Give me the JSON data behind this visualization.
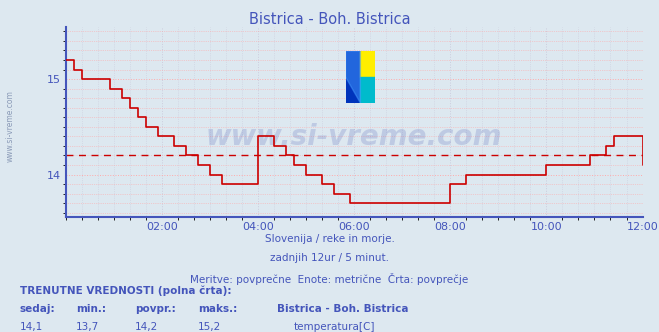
{
  "title": "Bistrica - Boh. Bistrica",
  "title_color": "#4455bb",
  "bg_color": "#dde8f0",
  "plot_bg_color": "#dde8f0",
  "grid_color_h": "#ffaaaa",
  "grid_color_v": "#ccccdd",
  "avg_line_value": 14.2,
  "avg_line_color": "#cc0000",
  "x_min": 0,
  "x_max": 144,
  "y_min": 13.55,
  "y_max": 15.55,
  "yticks": [
    14,
    15
  ],
  "xtick_labels": [
    "02:00",
    "04:00",
    "06:00",
    "08:00",
    "10:00",
    "12:00"
  ],
  "xtick_positions": [
    24,
    48,
    72,
    96,
    120,
    144
  ],
  "line_color": "#cc0000",
  "axis_color": "#4455bb",
  "spine_color": "#4455bb",
  "subtitle1": "Slovenija / reke in morje.",
  "subtitle2": "zadnjih 12ur / 5 minut.",
  "subtitle3": "Meritve: povprečne  Enote: metrične  Črta: povprečje",
  "footer_title": "TRENUTNE VREDNOSTI (polna črta):",
  "footer_labels": [
    "sedaj:",
    "min.:",
    "povpr.:",
    "maks.:"
  ],
  "footer_values": [
    "14,1",
    "13,7",
    "14,2",
    "15,2"
  ],
  "legend_label": "temperatura[C]",
  "legend_station": "Bistrica - Boh. Bistrica",
  "legend_color": "#cc0000",
  "watermark_text": "www.si-vreme.com",
  "watermark_side": "www.si-vreme.com",
  "temperature_data": [
    15.2,
    15.2,
    15.1,
    15.1,
    15.0,
    15.0,
    15.0,
    15.0,
    15.0,
    15.0,
    15.0,
    14.9,
    14.9,
    14.9,
    14.8,
    14.8,
    14.7,
    14.7,
    14.6,
    14.6,
    14.5,
    14.5,
    14.5,
    14.4,
    14.4,
    14.4,
    14.4,
    14.3,
    14.3,
    14.3,
    14.2,
    14.2,
    14.2,
    14.1,
    14.1,
    14.1,
    14.0,
    14.0,
    14.0,
    13.9,
    13.9,
    13.9,
    13.9,
    13.9,
    13.9,
    13.9,
    13.9,
    13.9,
    14.4,
    14.4,
    14.4,
    14.4,
    14.3,
    14.3,
    14.3,
    14.2,
    14.2,
    14.1,
    14.1,
    14.1,
    14.0,
    14.0,
    14.0,
    14.0,
    13.9,
    13.9,
    13.9,
    13.8,
    13.8,
    13.8,
    13.8,
    13.7,
    13.7,
    13.7,
    13.7,
    13.7,
    13.7,
    13.7,
    13.7,
    13.7,
    13.7,
    13.7,
    13.7,
    13.7,
    13.7,
    13.7,
    13.7,
    13.7,
    13.7,
    13.7,
    13.7,
    13.7,
    13.7,
    13.7,
    13.7,
    13.7,
    13.9,
    13.9,
    13.9,
    13.9,
    14.0,
    14.0,
    14.0,
    14.0,
    14.0,
    14.0,
    14.0,
    14.0,
    14.0,
    14.0,
    14.0,
    14.0,
    14.0,
    14.0,
    14.0,
    14.0,
    14.0,
    14.0,
    14.0,
    14.0,
    14.1,
    14.1,
    14.1,
    14.1,
    14.1,
    14.1,
    14.1,
    14.1,
    14.1,
    14.1,
    14.1,
    14.2,
    14.2,
    14.2,
    14.2,
    14.3,
    14.3,
    14.4,
    14.4,
    14.4,
    14.4,
    14.4,
    14.4,
    14.4,
    14.1,
    14.1
  ]
}
